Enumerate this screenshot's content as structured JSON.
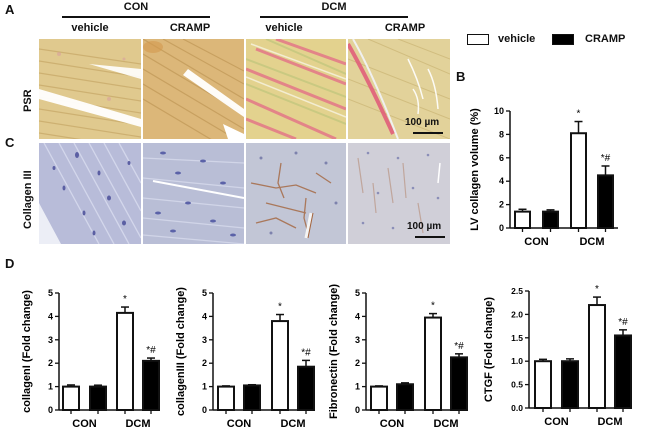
{
  "figure": {
    "panel_letters": {
      "A": "A",
      "B": "B",
      "C": "C",
      "D": "D"
    },
    "groups": [
      {
        "label": "CON",
        "columns": [
          "vehicle",
          "CRAMP"
        ]
      },
      {
        "label": "DCM",
        "columns": [
          "vehicle",
          "CRAMP"
        ]
      }
    ],
    "rows": [
      {
        "label": "PSR",
        "scale_bar": "100 µm"
      },
      {
        "label": "Collagen III",
        "scale_bar": "100 µm"
      }
    ],
    "legend": [
      {
        "label": "vehicle",
        "color": "#ffffff"
      },
      {
        "label": "CRAMP",
        "color": "#000000"
      }
    ],
    "micrographs": {
      "PSR": [
        "PSR CON vehicle",
        "PSR CON CRAMP",
        "PSR DCM vehicle",
        "PSR DCM CRAMP"
      ],
      "CollagenIII": [
        "Collagen III CON vehicle",
        "Collagen III CON CRAMP",
        "Collagen III DCM vehicle",
        "Collagen III DCM CRAMP"
      ]
    },
    "colors": {
      "psr_base": "#dcc48a",
      "psr_red": "#e0607a",
      "ihc_base": "#b9bfd6",
      "ihc_brown": "#a0603a",
      "nuclei": "#5a62a8"
    }
  },
  "chart_data": [
    {
      "id": "B",
      "type": "bar",
      "title": "",
      "xlabel": "",
      "ylabel": "LV collagen volume (%)",
      "categories": [
        "CON",
        "DCM"
      ],
      "series": [
        {
          "name": "vehicle",
          "values": [
            1.4,
            8.1
          ],
          "errors": [
            0.2,
            1.0
          ],
          "color": "#ffffff"
        },
        {
          "name": "CRAMP",
          "values": [
            1.4,
            4.5
          ],
          "errors": [
            0.15,
            0.8
          ],
          "color": "#000000"
        }
      ],
      "annotations": [
        [
          "",
          "*"
        ],
        [
          "",
          "*#"
        ]
      ],
      "ylim": [
        0,
        10
      ],
      "yticks": [
        "0",
        "2",
        "4",
        "6",
        "8",
        "10"
      ],
      "ytick_values": [
        0,
        2,
        4,
        6,
        8,
        10
      ],
      "grid": false
    },
    {
      "id": "D1",
      "type": "bar",
      "title": "",
      "xlabel": "",
      "ylabel": "collagenI (Fold change)",
      "categories": [
        "CON",
        "DCM"
      ],
      "series": [
        {
          "name": "vehicle",
          "values": [
            1.0,
            4.15
          ],
          "errors": [
            0.07,
            0.25
          ],
          "color": "#ffffff"
        },
        {
          "name": "CRAMP",
          "values": [
            1.0,
            2.1
          ],
          "errors": [
            0.06,
            0.12
          ],
          "color": "#000000"
        }
      ],
      "annotations": [
        [
          "",
          "*"
        ],
        [
          "",
          "*#"
        ]
      ],
      "ylim": [
        0,
        5
      ],
      "yticks": [
        "0",
        "1",
        "2",
        "3",
        "4",
        "5"
      ],
      "ytick_values": [
        0,
        1,
        2,
        3,
        4,
        5
      ],
      "grid": false
    },
    {
      "id": "D2",
      "type": "bar",
      "title": "",
      "xlabel": "",
      "ylabel": "collagenIII (Fold change)",
      "categories": [
        "CON",
        "DCM"
      ],
      "series": [
        {
          "name": "vehicle",
          "values": [
            1.0,
            3.8
          ],
          "errors": [
            0.03,
            0.28
          ],
          "color": "#ffffff"
        },
        {
          "name": "CRAMP",
          "values": [
            1.05,
            1.85
          ],
          "errors": [
            0.03,
            0.27
          ],
          "color": "#000000"
        }
      ],
      "annotations": [
        [
          "",
          "*"
        ],
        [
          "",
          "*#"
        ]
      ],
      "ylim": [
        0,
        5
      ],
      "yticks": [
        "0",
        "1",
        "2",
        "3",
        "4",
        "5"
      ],
      "ytick_values": [
        0,
        1,
        2,
        3,
        4,
        5
      ],
      "grid": false
    },
    {
      "id": "D3",
      "type": "bar",
      "title": "",
      "xlabel": "",
      "ylabel": "Fibronectin (Fold change)",
      "categories": [
        "CON",
        "DCM"
      ],
      "series": [
        {
          "name": "vehicle",
          "values": [
            1.0,
            3.95
          ],
          "errors": [
            0.03,
            0.17
          ],
          "color": "#ffffff"
        },
        {
          "name": "CRAMP",
          "values": [
            1.1,
            2.25
          ],
          "errors": [
            0.06,
            0.15
          ],
          "color": "#000000"
        }
      ],
      "annotations": [
        [
          "",
          "*"
        ],
        [
          "",
          "*#"
        ]
      ],
      "ylim": [
        0,
        5
      ],
      "yticks": [
        "0",
        "1",
        "2",
        "3",
        "4",
        "5"
      ],
      "ytick_values": [
        0,
        1,
        2,
        3,
        4,
        5
      ],
      "grid": false
    },
    {
      "id": "D4",
      "type": "bar",
      "title": "",
      "xlabel": "",
      "ylabel": "CTGF (Fold change)",
      "categories": [
        "CON",
        "DCM"
      ],
      "series": [
        {
          "name": "vehicle",
          "values": [
            1.0,
            2.2
          ],
          "errors": [
            0.04,
            0.17
          ],
          "color": "#ffffff"
        },
        {
          "name": "CRAMP",
          "values": [
            1.0,
            1.55
          ],
          "errors": [
            0.05,
            0.12
          ],
          "color": "#000000"
        }
      ],
      "annotations": [
        [
          "",
          "*"
        ],
        [
          "",
          "*#"
        ]
      ],
      "ylim": [
        0,
        2.5
      ],
      "yticks": [
        "0.0",
        "0.5",
        "1.0",
        "1.5",
        "2.0",
        "2.5"
      ],
      "ytick_values": [
        0,
        0.5,
        1.0,
        1.5,
        2.0,
        2.5
      ],
      "grid": false
    }
  ]
}
